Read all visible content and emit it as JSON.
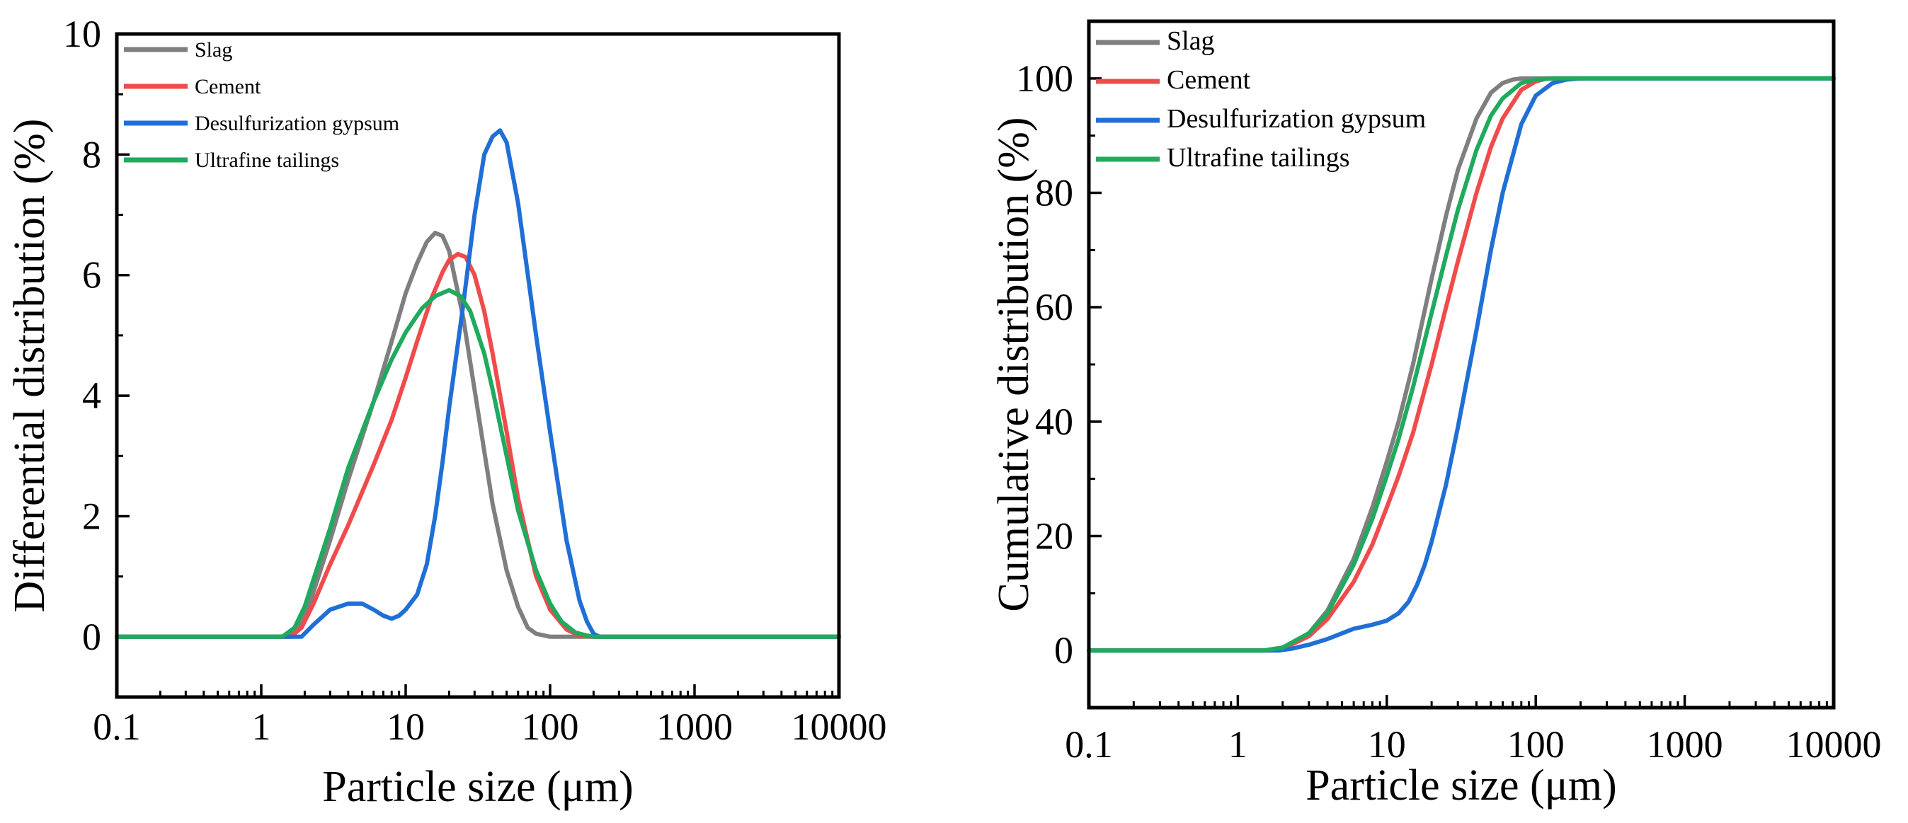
{
  "chart_data": [
    {
      "type": "line",
      "xlabel": "Particle size (μm)",
      "ylabel": "Differential distribution (%)",
      "xscale": "log",
      "xlim": [
        0.1,
        10000
      ],
      "ylim": [
        -1,
        10
      ],
      "xticks": [
        0.1,
        1,
        10,
        100,
        1000,
        10000
      ],
      "xtick_labels": [
        "0.1",
        "1",
        "10",
        "100",
        "1000",
        "10000"
      ],
      "yticks": [
        0,
        2,
        4,
        6,
        8,
        10
      ],
      "ytick_labels": [
        "0",
        "2",
        "4",
        "6",
        "8",
        "10"
      ],
      "grid": false,
      "legend": "top-left",
      "series": [
        {
          "name": "Slag",
          "color": "#7f7f7f",
          "x": [
            0.1,
            1.5,
            1.8,
            2.2,
            3,
            4,
            6,
            8,
            10,
            12,
            14,
            16,
            18,
            20,
            25,
            30,
            40,
            50,
            60,
            70,
            80,
            100,
            150,
            10000
          ],
          "y": [
            0,
            0,
            0.15,
            0.6,
            1.6,
            2.6,
            3.9,
            4.9,
            5.7,
            6.2,
            6.55,
            6.7,
            6.65,
            6.4,
            5.3,
            4.1,
            2.2,
            1.1,
            0.5,
            0.15,
            0.05,
            0,
            0,
            0
          ]
        },
        {
          "name": "Cement",
          "color": "#f04b4b",
          "x": [
            0.1,
            1.6,
            1.9,
            2.3,
            3,
            4,
            6,
            8,
            10,
            12,
            15,
            18,
            20,
            23,
            26,
            30,
            35,
            40,
            50,
            60,
            80,
            100,
            130,
            160,
            200,
            10000
          ],
          "y": [
            0,
            0,
            0.15,
            0.55,
            1.2,
            1.85,
            2.85,
            3.6,
            4.3,
            4.9,
            5.6,
            6.05,
            6.25,
            6.35,
            6.3,
            6.0,
            5.4,
            4.7,
            3.4,
            2.3,
            1.0,
            0.45,
            0.12,
            0.02,
            0,
            0
          ]
        },
        {
          "name": "Desulfurization gypsum",
          "color": "#1f6fd6",
          "x": [
            0.1,
            1.9,
            2.3,
            3,
            4,
            5,
            6,
            7,
            8,
            9,
            10,
            12,
            14,
            16,
            18,
            20,
            25,
            30,
            35,
            40,
            45,
            50,
            60,
            80,
            100,
            130,
            160,
            180,
            200,
            220,
            10000
          ],
          "y": [
            0,
            0,
            0.2,
            0.45,
            0.55,
            0.55,
            0.45,
            0.35,
            0.3,
            0.35,
            0.45,
            0.7,
            1.2,
            2.0,
            2.9,
            3.8,
            5.5,
            7.0,
            8.0,
            8.3,
            8.4,
            8.2,
            7.2,
            5.0,
            3.4,
            1.6,
            0.6,
            0.25,
            0.05,
            0,
            0
          ]
        },
        {
          "name": "Ultrafine tailings",
          "color": "#1faa5e",
          "x": [
            0.1,
            1.4,
            1.7,
            2,
            3,
            4,
            6,
            8,
            10,
            13,
            16,
            20,
            24,
            28,
            35,
            40,
            50,
            60,
            80,
            100,
            120,
            150,
            180,
            200,
            10000
          ],
          "y": [
            0,
            0,
            0.15,
            0.5,
            1.8,
            2.8,
            3.9,
            4.6,
            5.05,
            5.45,
            5.65,
            5.75,
            5.65,
            5.4,
            4.7,
            4.1,
            3.0,
            2.1,
            1.1,
            0.55,
            0.25,
            0.07,
            0.02,
            0,
            0
          ]
        }
      ]
    },
    {
      "type": "line",
      "xlabel": "Particle size (μm)",
      "ylabel": "Cumulative distribution (%)",
      "xscale": "log",
      "xlim": [
        0.1,
        10000
      ],
      "ylim": [
        -10,
        110
      ],
      "xticks": [
        0.1,
        1,
        10,
        100,
        1000,
        10000
      ],
      "xtick_labels": [
        "0.1",
        "1",
        "10",
        "100",
        "1000",
        "10000"
      ],
      "yticks": [
        0,
        20,
        40,
        60,
        80,
        100
      ],
      "ytick_labels": [
        "0",
        "20",
        "40",
        "60",
        "80",
        "100"
      ],
      "grid": false,
      "legend": "top-left",
      "series": [
        {
          "name": "Slag",
          "color": "#7f7f7f",
          "x": [
            0.1,
            1.5,
            2,
            3,
            4,
            6,
            8,
            10,
            12,
            15,
            20,
            25,
            30,
            40,
            50,
            60,
            70,
            80,
            100,
            10000
          ],
          "y": [
            0,
            0,
            0.5,
            3,
            7,
            16,
            25,
            33,
            40,
            50,
            65,
            76,
            84,
            93,
            97.5,
            99.2,
            99.8,
            100,
            100,
            100
          ]
        },
        {
          "name": "Cement",
          "color": "#f04b4b",
          "x": [
            0.1,
            1.6,
            2,
            3,
            4,
            6,
            8,
            10,
            12,
            15,
            20,
            25,
            30,
            40,
            50,
            60,
            80,
            100,
            120,
            150,
            10000
          ],
          "y": [
            0,
            0,
            0.3,
            2.5,
            5.5,
            12,
            18.5,
            25,
            30.5,
            38,
            50,
            60,
            68,
            80,
            88,
            93,
            98,
            99.5,
            100,
            100,
            100
          ]
        },
        {
          "name": "Desulfurization gypsum",
          "color": "#1f6fd6",
          "x": [
            0.1,
            1.9,
            2.3,
            3,
            4,
            5,
            6,
            8,
            10,
            12,
            14,
            16,
            18,
            20,
            25,
            30,
            40,
            50,
            60,
            80,
            100,
            130,
            160,
            200,
            10000
          ],
          "y": [
            0,
            0,
            0.3,
            1,
            2,
            3,
            3.8,
            4.5,
            5.2,
            6.5,
            8.5,
            11.5,
            15,
            19,
            29,
            39,
            56,
            70,
            80,
            92,
            97,
            99.2,
            99.8,
            100,
            100
          ]
        },
        {
          "name": "Ultrafine tailings",
          "color": "#1faa5e",
          "x": [
            0.1,
            1.5,
            2,
            3,
            4,
            6,
            8,
            10,
            12,
            15,
            20,
            25,
            30,
            40,
            50,
            60,
            80,
            100,
            130,
            10000
          ],
          "y": [
            0,
            0,
            0.5,
            3,
            6.5,
            15,
            23,
            30.5,
            37,
            46,
            59,
            69,
            77,
            87.5,
            93.5,
            96.5,
            99.2,
            99.8,
            100,
            100
          ]
        }
      ]
    }
  ]
}
